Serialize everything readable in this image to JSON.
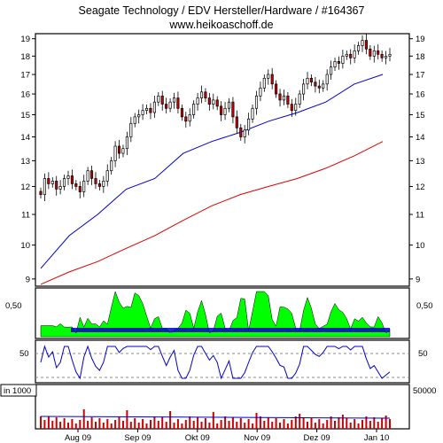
{
  "header": {
    "title": "Seagate Technology / EDV Hersteller/Hardware / #164367",
    "subtitle": "www.heikoaschoff.de"
  },
  "chart_data": [
    {
      "type": "candlestick",
      "panel": "price",
      "y_scale": "log",
      "ylim": [
        8.8,
        19.3
      ],
      "y_ticks": [
        9,
        10,
        11,
        12,
        13,
        14,
        15,
        16,
        17,
        18,
        19
      ],
      "x_ticks": [
        "Aug 09",
        "Sep 09",
        "Okt 09",
        "Nov 09",
        "Dez 09",
        "Jan 10"
      ],
      "colors": {
        "up": "#ffffff",
        "down": "#cc0000",
        "wick": "#000000"
      },
      "closes": [
        11.7,
        12.3,
        12.1,
        12.2,
        11.9,
        12.0,
        12.3,
        12.4,
        12.1,
        12.0,
        11.8,
        12.2,
        12.6,
        12.3,
        12.1,
        12.0,
        12.2,
        12.6,
        13.0,
        13.6,
        13.3,
        13.5,
        14.0,
        14.6,
        14.9,
        15.0,
        15.2,
        15.3,
        15.1,
        15.6,
        15.9,
        15.5,
        15.3,
        15.6,
        15.8,
        15.3,
        14.9,
        14.7,
        15.0,
        15.5,
        15.8,
        16.1,
        15.8,
        15.5,
        15.7,
        15.4,
        15.0,
        15.3,
        15.6,
        14.9,
        14.4,
        14.0,
        14.3,
        14.8,
        15.3,
        15.9,
        16.3,
        16.8,
        17.0,
        16.5,
        16.0,
        15.7,
        15.9,
        15.5,
        15.2,
        15.5,
        16.0,
        16.5,
        16.8,
        16.6,
        16.4,
        16.3,
        16.5,
        17.0,
        17.4,
        17.7,
        17.6,
        18.0,
        18.1,
        17.9,
        18.3,
        18.6,
        18.9,
        18.4,
        18.0,
        18.3,
        18.1,
        17.9,
        18.0,
        18.1
      ],
      "series": [
        {
          "name": "",
          "color": "#0000cc",
          "values": [
            9.3,
            10.3,
            11.0,
            11.9,
            12.3,
            13.3,
            13.8,
            14.2,
            14.7,
            15.1,
            15.6,
            16.5,
            17.0
          ]
        },
        {
          "name": "",
          "color": "#dd0000",
          "values": [
            8.85,
            9.2,
            9.5,
            9.9,
            10.3,
            10.8,
            11.3,
            11.7,
            12.0,
            12.3,
            12.7,
            13.2,
            13.8
          ]
        }
      ]
    },
    {
      "type": "area",
      "panel": "indicator-1",
      "y_ticks": [
        0.5
      ],
      "y_tick_labels": [
        "0,50"
      ],
      "colors": {
        "fill": "#00ff00",
        "band": "#0000cc"
      }
    },
    {
      "type": "line",
      "panel": "indicator-2",
      "y_ticks": [
        50
      ],
      "reference_lines": [
        50,
        20
      ],
      "color": "#0000cc"
    },
    {
      "type": "bar",
      "panel": "volume",
      "unit_label": "in 1000",
      "y_ticks": [
        50000
      ],
      "colors": {
        "bars": "#cc0000",
        "average": "#0000cc"
      }
    }
  ]
}
